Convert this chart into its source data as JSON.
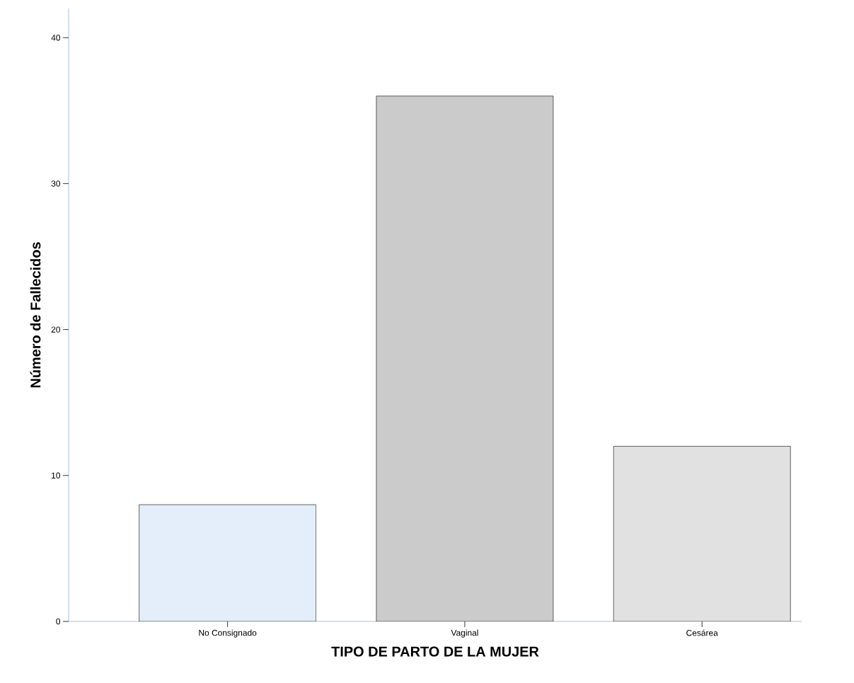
{
  "chart_data": {
    "type": "bar",
    "xlabel": "TIPO DE PARTO DE LA MUJER",
    "ylabel": "Número de Fallecidos",
    "categories": [
      "No Consignado",
      "Vaginal",
      "Cesárea"
    ],
    "values": [
      8,
      36,
      12
    ],
    "colors": [
      "#e3eefa",
      "#cbcbcb",
      "#e1e1e1"
    ],
    "ylim": [
      0,
      42
    ],
    "yticks": [
      0,
      10,
      20,
      30,
      40
    ]
  }
}
